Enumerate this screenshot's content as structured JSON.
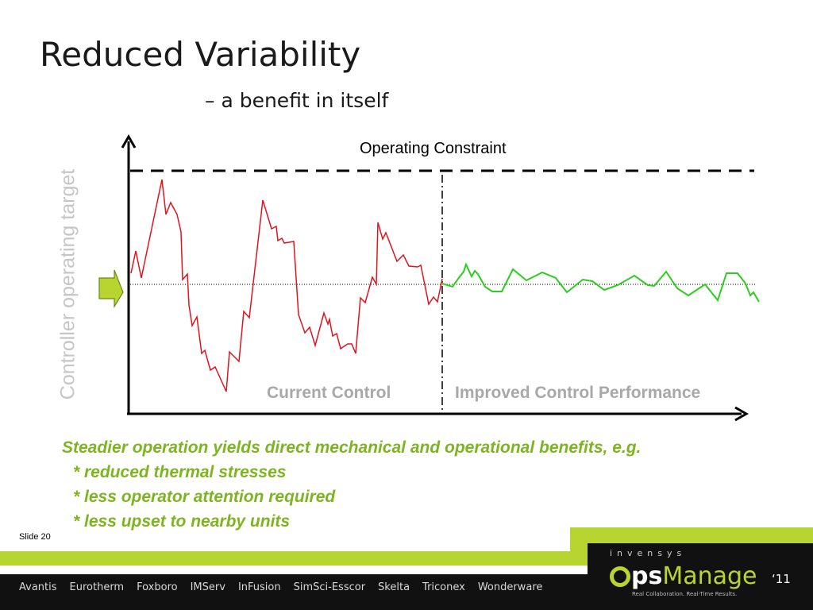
{
  "slide": {
    "title": "Reduced Variability",
    "subtitle": "– a benefit in itself",
    "slide_number": "Slide 20"
  },
  "diagram": {
    "y_axis_label": "Controller operating target",
    "constraint_label": "Operating Constraint",
    "region_current_label": "Current Control",
    "region_improved_label": "Improved Control Performance",
    "colors": {
      "current_series": "#e0141e",
      "improved_series": "#2ecc1e",
      "target_arrow": "#b7d431",
      "region_labels": "#a8a8a8"
    }
  },
  "bullets": {
    "heading": "Steadier operation yields direct mechanical and operational benefits, e.g.",
    "items": [
      "* reduced thermal stresses",
      "* less operator attention required",
      "* less upset to nearby units"
    ],
    "color": "#7db520"
  },
  "footer": {
    "products": [
      "Avantis",
      "Eurotherm",
      "Foxboro",
      "IMServ",
      "InFusion",
      "SimSci-Esscor",
      "Skelta",
      "Triconex",
      "Wonderware"
    ],
    "brand_company": "invensys",
    "brand_ps": "ps",
    "brand_manage": "Manage",
    "brand_year": "‘11",
    "tagline": "Real Collaboration. Real-Time Results."
  }
}
